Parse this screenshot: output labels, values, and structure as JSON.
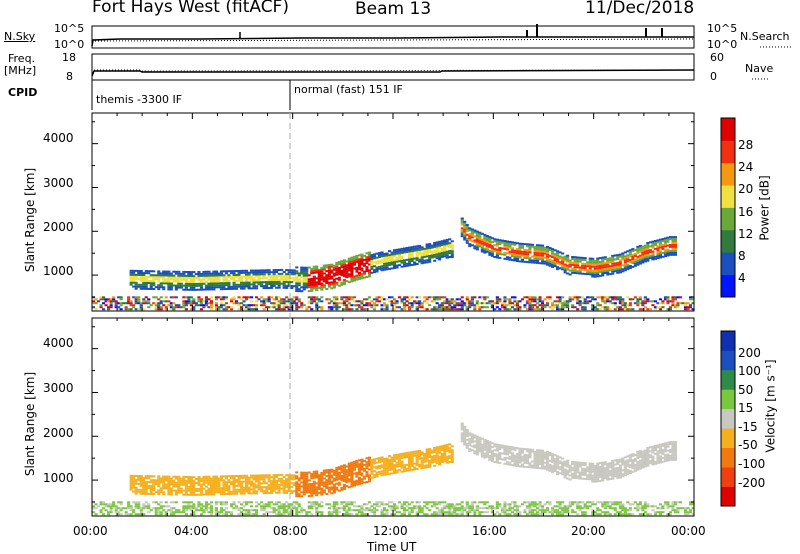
{
  "header": {
    "station": "Fort Hays West (fitACF)",
    "beam": "Beam 13",
    "date": "11/Dec/2018"
  },
  "top_panels": {
    "nsky_label": "N.Sky",
    "nsearch_label": "N.Search",
    "nsky_ticks": [
      "10^5",
      "10^0"
    ],
    "nsearch_ticks": [
      "10^5",
      "10^0"
    ],
    "freq_label": "Freq.",
    "freq_unit": "[MHz]",
    "freq_ticks": [
      "18",
      "8"
    ],
    "nave_label": "Nave",
    "nave_ticks": [
      "60",
      "0"
    ],
    "cpid_label": "CPID",
    "cpid_segments": [
      {
        "label": "themis -3300 IF",
        "start_hour": 0,
        "end_hour": 8
      },
      {
        "label": "normal (fast) 151 IF",
        "start_hour": 8,
        "end_hour": 24
      }
    ]
  },
  "chart_data": [
    {
      "type": "heatmap",
      "panel": "power",
      "xlabel": "",
      "ylabel": "Slant Range [km]",
      "xlim": [
        0,
        24
      ],
      "ylim": [
        180,
        4700
      ],
      "yticks": [
        "1000",
        "2000",
        "3000",
        "4000"
      ],
      "colorbar": {
        "label": "Power [dB]",
        "ticks": [
          "28",
          "24",
          "20",
          "16",
          "12",
          "8",
          "4"
        ],
        "range": [
          0,
          30
        ],
        "colors": [
          "#0015ff",
          "#1b4fc0",
          "#2f7a3c",
          "#6aa83a",
          "#f0e040",
          "#f59a10",
          "#f03010",
          "#e00000"
        ]
      },
      "features": [
        {
          "name": "echo band",
          "x": [
            1.5,
            4,
            6,
            7.5,
            8.5,
            9.5,
            10.5,
            11.5,
            12.5,
            13.5,
            14.2
          ],
          "y": [
            880,
            850,
            880,
            900,
            880,
            950,
            1150,
            1300,
            1400,
            1500,
            1600
          ]
        },
        {
          "name": "echo band",
          "x": [
            14.6,
            15,
            16,
            17,
            18,
            19,
            20,
            21,
            22,
            23
          ],
          "y": [
            2150,
            1850,
            1600,
            1500,
            1450,
            1200,
            1150,
            1250,
            1500,
            1650
          ]
        }
      ]
    },
    {
      "type": "heatmap",
      "panel": "velocity",
      "xlabel": "Time UT",
      "ylabel": "Slant Range [km]",
      "xlim": [
        0,
        24
      ],
      "ylim": [
        180,
        4700
      ],
      "xticks": [
        "00:00",
        "04:00",
        "08:00",
        "12:00",
        "16:00",
        "20:00",
        "00:00"
      ],
      "yticks": [
        "1000",
        "2000",
        "3000",
        "4000"
      ],
      "colorbar": {
        "label": "Velocity [m s⁻¹]",
        "ticks": [
          "200",
          "100",
          "50",
          "15",
          "-15",
          "-50",
          "-100",
          "-200"
        ],
        "range": [
          -250,
          250
        ],
        "colors": [
          "#e00000",
          "#f04010",
          "#f07a10",
          "#f5b020",
          "#c8c8c0",
          "#7ac840",
          "#2f8a4a",
          "#1b4fc0",
          "#1030b0"
        ]
      }
    }
  ]
}
